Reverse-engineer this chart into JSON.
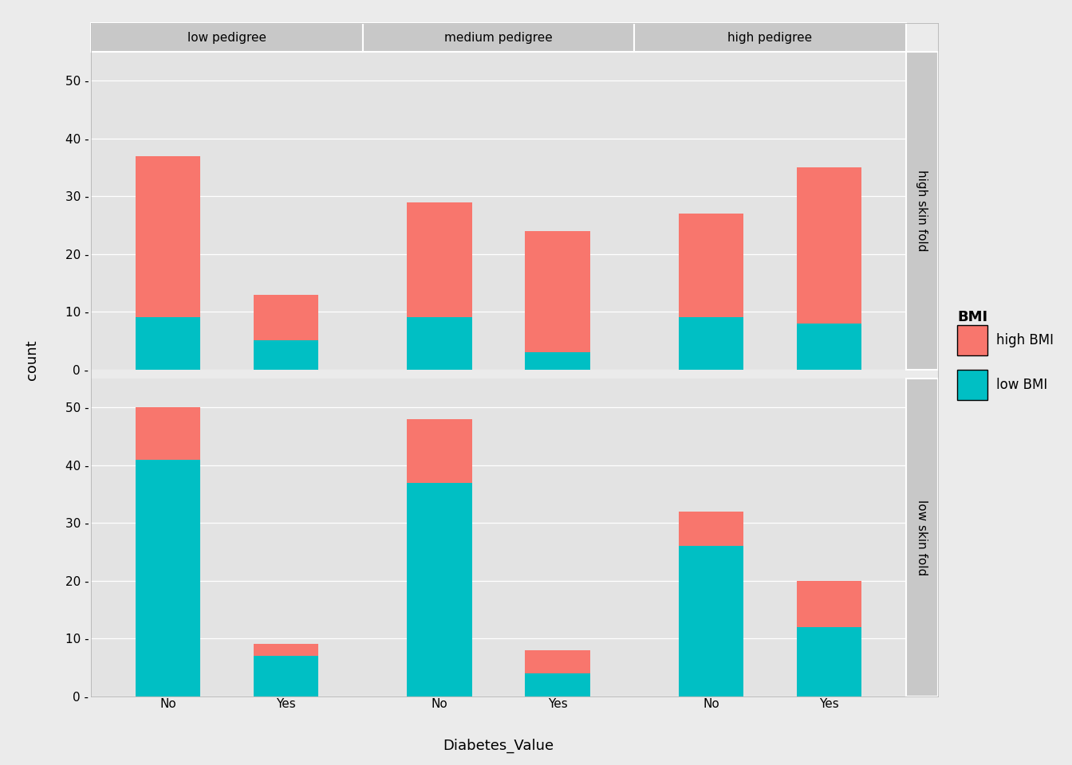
{
  "col_labels": [
    "low pedigree",
    "medium pedigree",
    "high pedigree"
  ],
  "row_labels": [
    "high skin fold",
    "low skin fold"
  ],
  "x_labels": [
    "No",
    "Yes"
  ],
  "xlabel": "Diabetes_Value",
  "ylabel": "count",
  "legend_title": "BMI",
  "legend_items": [
    "high BMI",
    "low BMI"
  ],
  "color_high_bmi": "#F8766D",
  "color_low_bmi": "#00BFC4",
  "yticks": [
    0,
    10,
    20,
    30,
    40,
    50
  ],
  "ylim": [
    0,
    55
  ],
  "data": {
    "high skin fold": {
      "low pedigree": {
        "No": {
          "low_bmi": 9,
          "high_bmi": 28
        },
        "Yes": {
          "low_bmi": 5,
          "high_bmi": 8
        }
      },
      "medium pedigree": {
        "No": {
          "low_bmi": 9,
          "high_bmi": 20
        },
        "Yes": {
          "low_bmi": 3,
          "high_bmi": 21
        }
      },
      "high pedigree": {
        "No": {
          "low_bmi": 9,
          "high_bmi": 18
        },
        "Yes": {
          "low_bmi": 8,
          "high_bmi": 27
        }
      }
    },
    "low skin fold": {
      "low pedigree": {
        "No": {
          "low_bmi": 41,
          "high_bmi": 9
        },
        "Yes": {
          "low_bmi": 7,
          "high_bmi": 2
        }
      },
      "medium pedigree": {
        "No": {
          "low_bmi": 37,
          "high_bmi": 11
        },
        "Yes": {
          "low_bmi": 4,
          "high_bmi": 4
        }
      },
      "high pedigree": {
        "No": {
          "low_bmi": 26,
          "high_bmi": 6
        },
        "Yes": {
          "low_bmi": 12,
          "high_bmi": 8
        }
      }
    }
  },
  "bg_color": "#EBEBEB",
  "panel_bg": "#E3E3E3",
  "strip_bg": "#C8C8C8",
  "grid_color": "#FFFFFF",
  "bar_width": 0.55,
  "title_fontsize": 11,
  "label_fontsize": 13,
  "tick_fontsize": 11,
  "legend_fontsize": 12,
  "sep_color": "#FFFFFF"
}
